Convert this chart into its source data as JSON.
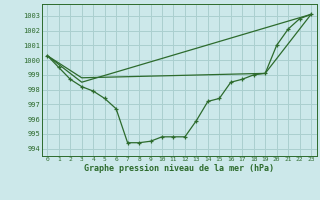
{
  "bg_color": "#cce8ea",
  "grid_color": "#aacfcf",
  "line_color": "#2d6b2d",
  "title": "Graphe pression niveau de la mer (hPa)",
  "xlim": [
    -0.5,
    23.5
  ],
  "ylim": [
    993.5,
    1003.8
  ],
  "yticks": [
    994,
    995,
    996,
    997,
    998,
    999,
    1000,
    1001,
    1002,
    1003
  ],
  "xticks": [
    0,
    1,
    2,
    3,
    4,
    5,
    6,
    7,
    8,
    9,
    10,
    11,
    12,
    13,
    14,
    15,
    16,
    17,
    18,
    19,
    20,
    21,
    22,
    23
  ],
  "series0": {
    "x": [
      0,
      1,
      2,
      3,
      4,
      5,
      6,
      7,
      8,
      9,
      10,
      11,
      12,
      13,
      14,
      15,
      16,
      17,
      18,
      19,
      20,
      21,
      22,
      23
    ],
    "y": [
      1000.3,
      999.5,
      998.7,
      998.2,
      997.9,
      997.4,
      996.7,
      994.4,
      994.4,
      994.5,
      994.8,
      994.8,
      994.8,
      995.9,
      997.2,
      997.4,
      998.5,
      998.7,
      999.0,
      999.1,
      1001.0,
      1002.1,
      1002.8,
      1003.1
    ]
  },
  "series1": {
    "x": [
      0,
      3,
      23
    ],
    "y": [
      1000.3,
      998.5,
      1003.1
    ]
  },
  "series2": {
    "x": [
      0,
      3,
      19,
      23
    ],
    "y": [
      1000.3,
      998.8,
      999.1,
      1003.1
    ]
  }
}
